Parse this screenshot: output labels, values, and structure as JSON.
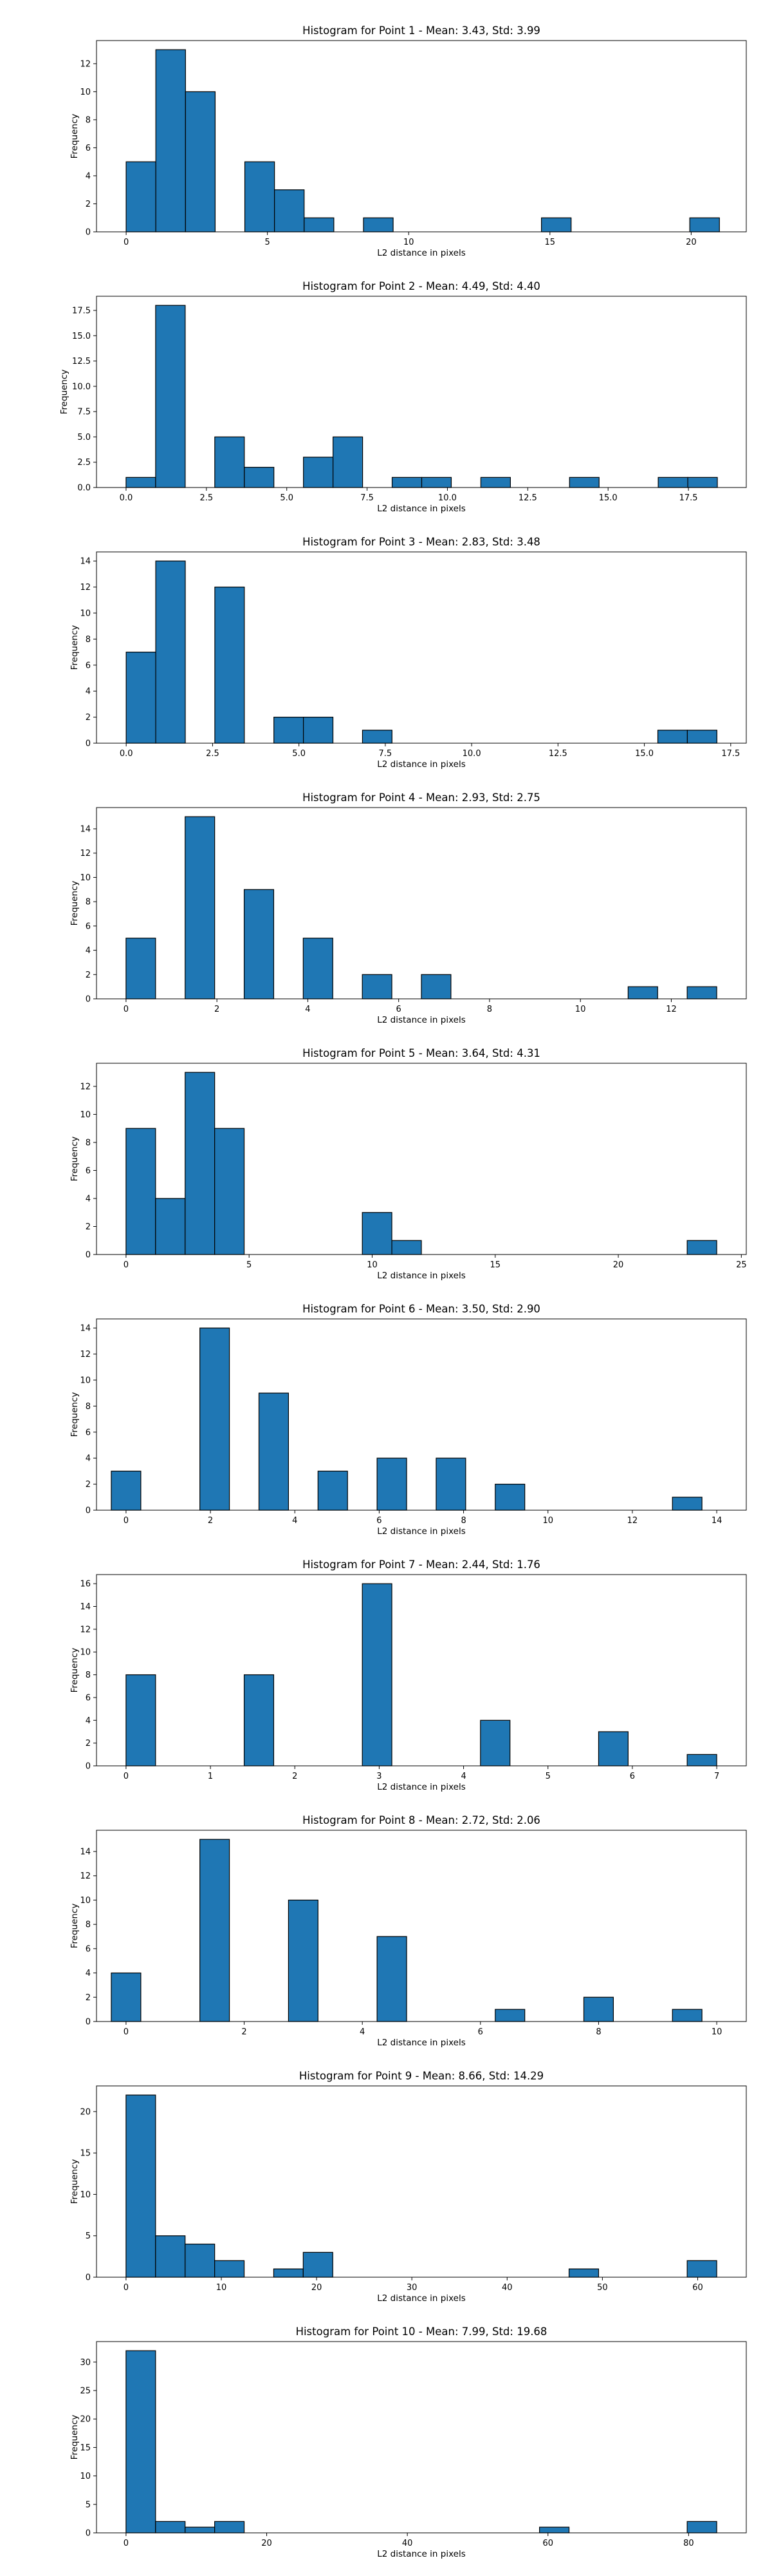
{
  "chart_data": [
    {
      "type": "histogram",
      "title": "Histogram for Point 1 - Mean: 3.43, Std: 3.99",
      "xlabel": "L2 distance in pixels",
      "ylabel": "Frequency",
      "bar_color": "#1f77b4",
      "xlim": [
        -1.05,
        21.95
      ],
      "ylim": [
        0,
        13.65
      ],
      "xticks": [
        {
          "v": 0,
          "label": "0"
        },
        {
          "v": 5,
          "label": "5"
        },
        {
          "v": 10,
          "label": "10"
        },
        {
          "v": 15,
          "label": "15"
        },
        {
          "v": 20,
          "label": "20"
        }
      ],
      "yticks": [
        {
          "v": 0,
          "label": "0"
        },
        {
          "v": 2,
          "label": "2"
        },
        {
          "v": 4,
          "label": "4"
        },
        {
          "v": 6,
          "label": "6"
        },
        {
          "v": 8,
          "label": "8"
        },
        {
          "v": 10,
          "label": "10"
        },
        {
          "v": 12,
          "label": "12"
        }
      ],
      "bin_start": 0,
      "bin_width": 1.05,
      "counts": [
        5,
        13,
        10,
        0,
        5,
        3,
        1,
        0,
        1,
        0,
        0,
        0,
        0,
        0,
        1,
        0,
        0,
        0,
        0,
        1
      ]
    },
    {
      "type": "histogram",
      "title": "Histogram for Point 2 - Mean: 4.49, Std: 4.40",
      "xlabel": "L2 distance in pixels",
      "ylabel": "Frequency",
      "bar_color": "#1f77b4",
      "xlim": [
        -0.92,
        19.3
      ],
      "ylim": [
        0,
        18.9
      ],
      "xticks": [
        {
          "v": 0,
          "label": "0.0"
        },
        {
          "v": 2.5,
          "label": "2.5"
        },
        {
          "v": 5,
          "label": "5.0"
        },
        {
          "v": 7.5,
          "label": "7.5"
        },
        {
          "v": 10,
          "label": "10.0"
        },
        {
          "v": 12.5,
          "label": "12.5"
        },
        {
          "v": 15,
          "label": "15.0"
        },
        {
          "v": 17.5,
          "label": "17.5"
        }
      ],
      "yticks": [
        {
          "v": 0,
          "label": "0.0"
        },
        {
          "v": 2.5,
          "label": "2.5"
        },
        {
          "v": 5,
          "label": "5.0"
        },
        {
          "v": 7.5,
          "label": "7.5"
        },
        {
          "v": 10,
          "label": "10.0"
        },
        {
          "v": 12.5,
          "label": "12.5"
        },
        {
          "v": 15,
          "label": "15.0"
        },
        {
          "v": 17.5,
          "label": "17.5"
        }
      ],
      "bin_start": 0,
      "bin_width": 0.92,
      "counts": [
        1,
        18,
        0,
        5,
        2,
        0,
        3,
        5,
        0,
        1,
        1,
        0,
        1,
        0,
        0,
        1,
        0,
        0,
        1,
        1
      ]
    },
    {
      "type": "histogram",
      "title": "Histogram for Point 3 - Mean: 2.83, Std: 3.48",
      "xlabel": "L2 distance in pixels",
      "ylabel": "Frequency",
      "bar_color": "#1f77b4",
      "xlim": [
        -0.86,
        17.95
      ],
      "ylim": [
        0,
        14.7
      ],
      "xticks": [
        {
          "v": 0,
          "label": "0.0"
        },
        {
          "v": 2.5,
          "label": "2.5"
        },
        {
          "v": 5,
          "label": "5.0"
        },
        {
          "v": 7.5,
          "label": "7.5"
        },
        {
          "v": 10,
          "label": "10.0"
        },
        {
          "v": 12.5,
          "label": "12.5"
        },
        {
          "v": 15,
          "label": "15.0"
        },
        {
          "v": 17.5,
          "label": "17.5"
        }
      ],
      "yticks": [
        {
          "v": 0,
          "label": "0"
        },
        {
          "v": 2,
          "label": "2"
        },
        {
          "v": 4,
          "label": "4"
        },
        {
          "v": 6,
          "label": "6"
        },
        {
          "v": 8,
          "label": "8"
        },
        {
          "v": 10,
          "label": "10"
        },
        {
          "v": 12,
          "label": "12"
        },
        {
          "v": 14,
          "label": "14"
        }
      ],
      "bin_start": 0,
      "bin_width": 0.855,
      "counts": [
        7,
        14,
        0,
        12,
        0,
        2,
        2,
        0,
        1,
        0,
        0,
        0,
        0,
        0,
        0,
        0,
        0,
        0,
        1,
        1
      ]
    },
    {
      "type": "histogram",
      "title": "Histogram for Point 4 - Mean: 2.93, Std: 2.75",
      "xlabel": "L2 distance in pixels",
      "ylabel": "Frequency",
      "bar_color": "#1f77b4",
      "xlim": [
        -0.65,
        13.65
      ],
      "ylim": [
        0,
        15.75
      ],
      "xticks": [
        {
          "v": 0,
          "label": "0"
        },
        {
          "v": 2,
          "label": "2"
        },
        {
          "v": 4,
          "label": "4"
        },
        {
          "v": 6,
          "label": "6"
        },
        {
          "v": 8,
          "label": "8"
        },
        {
          "v": 10,
          "label": "10"
        },
        {
          "v": 12,
          "label": "12"
        }
      ],
      "yticks": [
        {
          "v": 0,
          "label": "0"
        },
        {
          "v": 2,
          "label": "2"
        },
        {
          "v": 4,
          "label": "4"
        },
        {
          "v": 6,
          "label": "6"
        },
        {
          "v": 8,
          "label": "8"
        },
        {
          "v": 10,
          "label": "10"
        },
        {
          "v": 12,
          "label": "12"
        },
        {
          "v": 14,
          "label": "14"
        }
      ],
      "bin_start": 0,
      "bin_width": 0.65,
      "counts": [
        5,
        0,
        15,
        0,
        9,
        0,
        5,
        0,
        2,
        0,
        2,
        0,
        0,
        0,
        0,
        0,
        0,
        1,
        0,
        1
      ]
    },
    {
      "type": "histogram",
      "title": "Histogram for Point 5 - Mean: 3.64, Std: 4.31",
      "xlabel": "L2 distance in pixels",
      "ylabel": "Frequency",
      "bar_color": "#1f77b4",
      "xlim": [
        -1.2,
        25.2
      ],
      "ylim": [
        0,
        13.65
      ],
      "xticks": [
        {
          "v": 0,
          "label": "0"
        },
        {
          "v": 5,
          "label": "5"
        },
        {
          "v": 10,
          "label": "10"
        },
        {
          "v": 15,
          "label": "15"
        },
        {
          "v": 20,
          "label": "20"
        },
        {
          "v": 25,
          "label": "25"
        }
      ],
      "yticks": [
        {
          "v": 0,
          "label": "0"
        },
        {
          "v": 2,
          "label": "2"
        },
        {
          "v": 4,
          "label": "4"
        },
        {
          "v": 6,
          "label": "6"
        },
        {
          "v": 8,
          "label": "8"
        },
        {
          "v": 10,
          "label": "10"
        },
        {
          "v": 12,
          "label": "12"
        }
      ],
      "bin_start": 0,
      "bin_width": 1.2,
      "counts": [
        9,
        4,
        13,
        9,
        0,
        0,
        0,
        0,
        3,
        1,
        0,
        0,
        0,
        0,
        0,
        0,
        0,
        0,
        0,
        1
      ]
    },
    {
      "type": "histogram",
      "title": "Histogram for Point 6 - Mean: 3.50, Std: 2.90",
      "xlabel": "L2 distance in pixels",
      "ylabel": "Frequency",
      "bar_color": "#1f77b4",
      "xlim": [
        -0.7,
        14.7
      ],
      "ylim": [
        0,
        14.7
      ],
      "xticks": [
        {
          "v": 0,
          "label": "0"
        },
        {
          "v": 2,
          "label": "2"
        },
        {
          "v": 4,
          "label": "4"
        },
        {
          "v": 6,
          "label": "6"
        },
        {
          "v": 8,
          "label": "8"
        },
        {
          "v": 10,
          "label": "10"
        },
        {
          "v": 12,
          "label": "12"
        },
        {
          "v": 14,
          "label": "14"
        }
      ],
      "yticks": [
        {
          "v": 0,
          "label": "0"
        },
        {
          "v": 2,
          "label": "2"
        },
        {
          "v": 4,
          "label": "4"
        },
        {
          "v": 6,
          "label": "6"
        },
        {
          "v": 8,
          "label": "8"
        },
        {
          "v": 10,
          "label": "10"
        },
        {
          "v": 12,
          "label": "12"
        },
        {
          "v": 14,
          "label": "14"
        }
      ],
      "bin_start": -0.35,
      "bin_width": 0.7,
      "counts": [
        3,
        0,
        0,
        14,
        0,
        9,
        0,
        3,
        0,
        4,
        0,
        4,
        0,
        2,
        0,
        0,
        0,
        0,
        0,
        1
      ]
    },
    {
      "type": "histogram",
      "title": "Histogram for Point 7 - Mean: 2.44, Std: 1.76",
      "xlabel": "L2 distance in pixels",
      "ylabel": "Frequency",
      "bar_color": "#1f77b4",
      "xlim": [
        -0.35,
        7.35
      ],
      "ylim": [
        0,
        16.8
      ],
      "xticks": [
        {
          "v": 0,
          "label": "0"
        },
        {
          "v": 1,
          "label": "1"
        },
        {
          "v": 2,
          "label": "2"
        },
        {
          "v": 3,
          "label": "3"
        },
        {
          "v": 4,
          "label": "4"
        },
        {
          "v": 5,
          "label": "5"
        },
        {
          "v": 6,
          "label": "6"
        },
        {
          "v": 7,
          "label": "7"
        }
      ],
      "yticks": [
        {
          "v": 0,
          "label": "0"
        },
        {
          "v": 2,
          "label": "2"
        },
        {
          "v": 4,
          "label": "4"
        },
        {
          "v": 6,
          "label": "6"
        },
        {
          "v": 8,
          "label": "8"
        },
        {
          "v": 10,
          "label": "10"
        },
        {
          "v": 12,
          "label": "12"
        },
        {
          "v": 14,
          "label": "14"
        },
        {
          "v": 16,
          "label": "16"
        }
      ],
      "bin_start": 0,
      "bin_width": 0.35,
      "counts": [
        8,
        0,
        0,
        0,
        8,
        0,
        0,
        0,
        16,
        0,
        0,
        0,
        4,
        0,
        0,
        0,
        3,
        0,
        0,
        1
      ]
    },
    {
      "type": "histogram",
      "title": "Histogram for Point 8 - Mean: 2.72, Std: 2.06",
      "xlabel": "L2 distance in pixels",
      "ylabel": "Frequency",
      "bar_color": "#1f77b4",
      "xlim": [
        -0.5,
        10.5
      ],
      "ylim": [
        0,
        15.75
      ],
      "xticks": [
        {
          "v": 0,
          "label": "0"
        },
        {
          "v": 2,
          "label": "2"
        },
        {
          "v": 4,
          "label": "4"
        },
        {
          "v": 6,
          "label": "6"
        },
        {
          "v": 8,
          "label": "8"
        },
        {
          "v": 10,
          "label": "10"
        }
      ],
      "yticks": [
        {
          "v": 0,
          "label": "0"
        },
        {
          "v": 2,
          "label": "2"
        },
        {
          "v": 4,
          "label": "4"
        },
        {
          "v": 6,
          "label": "6"
        },
        {
          "v": 8,
          "label": "8"
        },
        {
          "v": 10,
          "label": "10"
        },
        {
          "v": 12,
          "label": "12"
        },
        {
          "v": 14,
          "label": "14"
        }
      ],
      "bin_start": -0.25,
      "bin_width": 0.5,
      "counts": [
        4,
        0,
        0,
        15,
        0,
        0,
        10,
        0,
        0,
        7,
        0,
        0,
        0,
        1,
        0,
        0,
        2,
        0,
        0,
        1
      ]
    },
    {
      "type": "histogram",
      "title": "Histogram for Point 9 - Mean: 8.66, Std: 14.29",
      "xlabel": "L2 distance in pixels",
      "ylabel": "Frequency",
      "bar_color": "#1f77b4",
      "xlim": [
        -3.1,
        65.1
      ],
      "ylim": [
        0,
        23.1
      ],
      "xticks": [
        {
          "v": 0,
          "label": "0"
        },
        {
          "v": 10,
          "label": "10"
        },
        {
          "v": 20,
          "label": "20"
        },
        {
          "v": 30,
          "label": "30"
        },
        {
          "v": 40,
          "label": "40"
        },
        {
          "v": 50,
          "label": "50"
        },
        {
          "v": 60,
          "label": "60"
        }
      ],
      "yticks": [
        {
          "v": 0,
          "label": "0"
        },
        {
          "v": 5,
          "label": "5"
        },
        {
          "v": 10,
          "label": "10"
        },
        {
          "v": 15,
          "label": "15"
        },
        {
          "v": 20,
          "label": "20"
        }
      ],
      "bin_start": 0,
      "bin_width": 3.1,
      "counts": [
        22,
        5,
        4,
        2,
        0,
        1,
        3,
        0,
        0,
        0,
        0,
        0,
        0,
        0,
        0,
        1,
        0,
        0,
        0,
        2
      ]
    },
    {
      "type": "histogram",
      "title": "Histogram for Point 10 - Mean: 7.99, Std: 19.68",
      "xlabel": "L2 distance in pixels",
      "ylabel": "Frequency",
      "bar_color": "#1f77b4",
      "xlim": [
        -4.2,
        88.2
      ],
      "ylim": [
        0,
        33.6
      ],
      "xticks": [
        {
          "v": 0,
          "label": "0"
        },
        {
          "v": 20,
          "label": "20"
        },
        {
          "v": 40,
          "label": "40"
        },
        {
          "v": 60,
          "label": "60"
        },
        {
          "v": 80,
          "label": "80"
        }
      ],
      "yticks": [
        {
          "v": 0,
          "label": "0"
        },
        {
          "v": 5,
          "label": "5"
        },
        {
          "v": 10,
          "label": "10"
        },
        {
          "v": 15,
          "label": "15"
        },
        {
          "v": 20,
          "label": "20"
        },
        {
          "v": 25,
          "label": "25"
        },
        {
          "v": 30,
          "label": "30"
        }
      ],
      "bin_start": 0,
      "bin_width": 4.2,
      "counts": [
        32,
        2,
        1,
        2,
        0,
        0,
        0,
        0,
        0,
        0,
        0,
        0,
        0,
        0,
        1,
        0,
        0,
        0,
        0,
        2
      ]
    }
  ]
}
